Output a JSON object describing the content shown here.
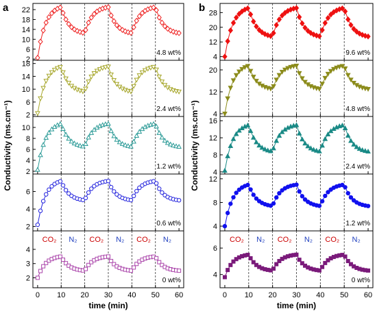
{
  "chart_data": [
    {
      "panel": "a",
      "type": "line",
      "xlabel": "time (min)",
      "ylabel": "Conductivity  (ms.cm⁻¹)",
      "xlim": [
        -2,
        62
      ],
      "xticks": [
        0,
        10,
        20,
        30,
        40,
        50,
        60
      ],
      "vlines": [
        10,
        20,
        30,
        40,
        50
      ],
      "gas_labels": [
        {
          "text": "CO₂",
          "x": 5,
          "color": "#cc0000"
        },
        {
          "text": "N₂",
          "x": 15,
          "color": "#1f3fbf"
        },
        {
          "text": "CO₂",
          "x": 25,
          "color": "#cc0000"
        },
        {
          "text": "N₂",
          "x": 35,
          "color": "#1f3fbf"
        },
        {
          "text": "CO₂",
          "x": 45,
          "color": "#cc0000"
        },
        {
          "text": "N₂",
          "x": 55,
          "color": "#1f3fbf"
        }
      ],
      "subplots": [
        {
          "label": "4.8 wt%",
          "color": "#ee2222",
          "marker": "diamond-open",
          "ylim": [
            1.5,
            24.5
          ],
          "yticks": [
            2,
            6,
            10,
            14,
            18,
            22
          ],
          "start": 2.5,
          "low": 12.5,
          "high": 23.0
        },
        {
          "label": "2.4 wt%",
          "color": "#a6a62a",
          "marker": "triangle-down-open",
          "ylim": [
            1.5,
            19
          ],
          "yticks": [
            2,
            6,
            10,
            14,
            18
          ],
          "start": 2.5,
          "low": 9.2,
          "high": 17.0
        },
        {
          "label": "1.2 wt%",
          "color": "#2a9a96",
          "marker": "triangle-up-open",
          "ylim": [
            1.5,
            12
          ],
          "yticks": [
            2,
            4,
            6,
            8,
            10
          ],
          "start": 2.3,
          "low": 6.5,
          "high": 10.7
        },
        {
          "label": "0.6 wt%",
          "color": "#2222dd",
          "marker": "circle-open",
          "ylim": [
            1.5,
            8
          ],
          "yticks": [
            2,
            4,
            6
          ],
          "start": 2.2,
          "low": 5.0,
          "high": 7.2
        },
        {
          "label": "0 wt%",
          "color": "#aa44aa",
          "marker": "square-open",
          "ylim": [
            1.3,
            5.3
          ],
          "yticks": [
            2,
            3,
            4
          ],
          "start": 2.0,
          "low": 2.5,
          "high": 3.5
        }
      ]
    },
    {
      "panel": "b",
      "type": "line",
      "xlabel": "time (min)",
      "ylabel": "Conductivity  (ms.cm⁻¹)",
      "xlim": [
        -2,
        62
      ],
      "xticks": [
        0,
        10,
        20,
        30,
        40,
        50,
        60
      ],
      "vlines": [
        10,
        20,
        30,
        40,
        50
      ],
      "gas_labels": [
        {
          "text": "CO₂",
          "x": 5,
          "color": "#cc0000"
        },
        {
          "text": "N₂",
          "x": 15,
          "color": "#1f3fbf"
        },
        {
          "text": "CO₂",
          "x": 25,
          "color": "#cc0000"
        },
        {
          "text": "N₂",
          "x": 35,
          "color": "#1f3fbf"
        },
        {
          "text": "CO₂",
          "x": 45,
          "color": "#cc0000"
        },
        {
          "text": "N₂",
          "x": 55,
          "color": "#1f3fbf"
        }
      ],
      "subplots": [
        {
          "label": "9.6 wt%",
          "color": "#ee1111",
          "marker": "diamond-filled",
          "ylim": [
            2,
            33
          ],
          "yticks": [
            4,
            12,
            20,
            28
          ],
          "start": 4.0,
          "low": 15.0,
          "high": 30.5
        },
        {
          "label": "4.8 wt%",
          "color": "#8c8c1c",
          "marker": "triangle-down-filled",
          "ylim": [
            3,
            23.5
          ],
          "yticks": [
            4,
            12,
            20
          ],
          "start": 4.0,
          "low": 13.0,
          "high": 21.5
        },
        {
          "label": "2.4 wt%",
          "color": "#1a8a86",
          "marker": "triangle-up-filled",
          "ylim": [
            3.5,
            17
          ],
          "yticks": [
            4,
            8,
            12,
            16
          ],
          "start": 4.3,
          "low": 8.8,
          "high": 15.0
        },
        {
          "label": "1.2 wt%",
          "color": "#1111ee",
          "marker": "circle-filled",
          "ylim": [
            3.2,
            12.8
          ],
          "yticks": [
            4,
            8,
            12
          ],
          "start": 4.0,
          "low": 7.4,
          "high": 11.0
        },
        {
          "label": "0 wt%",
          "color": "#7a1a7a",
          "marker": "square-filled",
          "ylim": [
            3,
            7.3
          ],
          "yticks": [
            4,
            6
          ],
          "start": 3.8,
          "low": 4.3,
          "high": 5.5
        }
      ]
    }
  ],
  "panel_letters": [
    "a",
    "b"
  ]
}
